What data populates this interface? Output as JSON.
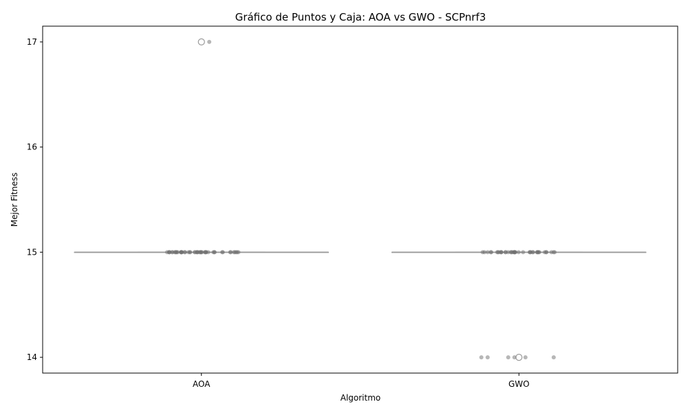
{
  "chart_data": {
    "type": "box",
    "title": "Gráfico de Puntos y Caja: AOA vs GWO - SCPnrf3",
    "xlabel": "Algoritmo",
    "ylabel": "Mejor Fitness",
    "categories": [
      "AOA",
      "GWO"
    ],
    "y_ticks": [
      14,
      15,
      16,
      17
    ],
    "ylim": [
      13.85,
      17.15
    ],
    "grid": false,
    "boxes": [
      {
        "category": "AOA",
        "q1": 15,
        "median": 15,
        "q3": 15,
        "whisker_low": 15,
        "whisker_high": 15,
        "outliers": [
          17
        ]
      },
      {
        "category": "GWO",
        "q1": 15,
        "median": 15,
        "q3": 15,
        "whisker_low": 15,
        "whisker_high": 15,
        "outliers": [
          14
        ]
      }
    ],
    "points": [
      {
        "category": "AOA",
        "values": [
          15,
          15,
          15,
          15,
          15,
          15,
          15,
          15,
          15,
          15,
          15,
          15,
          15,
          15,
          15,
          15,
          15,
          15,
          15,
          15,
          15,
          15,
          15,
          15,
          15,
          15,
          15,
          15,
          15,
          15,
          15,
          15,
          15,
          15,
          15,
          15,
          15,
          15,
          15,
          15,
          15,
          15,
          15,
          15,
          15,
          15,
          15,
          15,
          17
        ]
      },
      {
        "category": "GWO",
        "values": [
          15,
          15,
          15,
          15,
          15,
          15,
          15,
          15,
          15,
          15,
          15,
          15,
          15,
          15,
          15,
          15,
          15,
          15,
          15,
          15,
          15,
          15,
          15,
          15,
          15,
          15,
          15,
          15,
          15,
          15,
          15,
          15,
          15,
          15,
          15,
          15,
          15,
          15,
          15,
          15,
          14,
          14,
          14,
          14,
          14,
          14
        ]
      }
    ],
    "colors": {
      "box": "#9a9a9a",
      "point": "#707070",
      "axis": "#000000"
    }
  }
}
